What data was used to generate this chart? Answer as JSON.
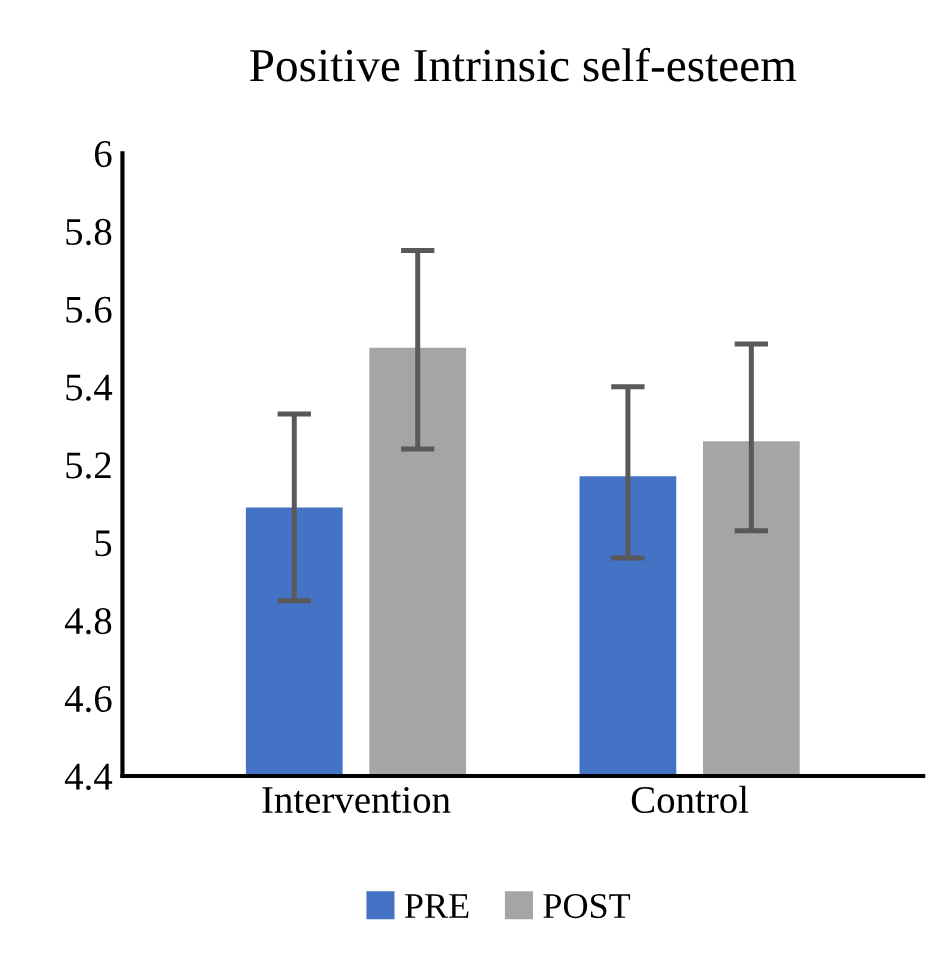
{
  "chart_data": {
    "type": "bar",
    "title": "Positive Intrinsic self-esteem",
    "categories": [
      "Intervention",
      "Control"
    ],
    "series": [
      {
        "name": "PRE",
        "color": "#4472c4",
        "values": [
          5.09,
          5.17
        ],
        "errors": [
          [
            4.85,
            5.33
          ],
          [
            4.96,
            5.4
          ]
        ]
      },
      {
        "name": "POST",
        "color": "#a5a5a5",
        "values": [
          5.5,
          5.26
        ],
        "errors": [
          [
            5.24,
            5.75
          ],
          [
            5.03,
            5.51
          ]
        ]
      }
    ],
    "ylim": [
      4.4,
      6
    ],
    "yticks": [
      4.4,
      4.6,
      4.8,
      5,
      5.2,
      5.4,
      5.6,
      5.8,
      6
    ],
    "grid": false,
    "legend": "bottom"
  }
}
